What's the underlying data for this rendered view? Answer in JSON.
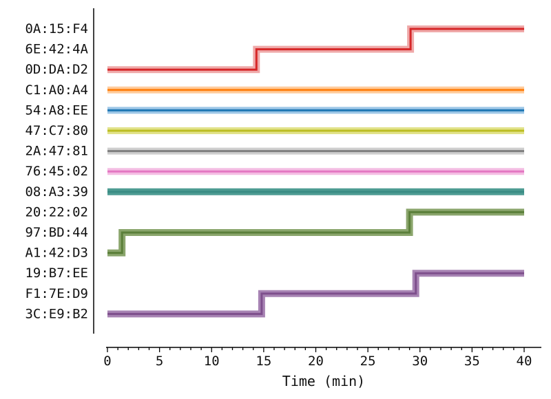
{
  "chart_data": {
    "type": "line",
    "title": "",
    "xlabel": "Time (min)",
    "ylabel": "",
    "xlim": [
      0,
      40
    ],
    "x_major_ticks": [
      0,
      5,
      10,
      15,
      20,
      25,
      30,
      35,
      40
    ],
    "x_minor_step": 1,
    "grid": false,
    "categories": [
      "0A:15:F4",
      "6E:42:4A",
      "0D:DA:D2",
      "C1:A0:A4",
      "54:A8:EE",
      "47:C7:80",
      "2A:47:81",
      "76:45:02",
      "08:A3:39",
      "20:22:02",
      "97:BD:44",
      "A1:42:D3",
      "19:B7:EE",
      "F1:7E:D9",
      "3C:E9:B2"
    ],
    "series": [
      {
        "color": "#d62728",
        "halo": "#efa9a9",
        "points": [
          [
            0,
            "0D:DA:D2"
          ],
          [
            14.3,
            "0D:DA:D2"
          ],
          [
            14.3,
            "6E:42:4A"
          ],
          [
            29.1,
            "6E:42:4A"
          ],
          [
            29.1,
            "0A:15:F4"
          ],
          [
            40,
            "0A:15:F4"
          ]
        ]
      },
      {
        "color": "#ff7f0e",
        "halo": "#ffcc9c",
        "points": [
          [
            0,
            "C1:A0:A4"
          ],
          [
            40,
            "C1:A0:A4"
          ]
        ]
      },
      {
        "color": "#1f77b4",
        "halo": "#9dc6e6",
        "points": [
          [
            0,
            "54:A8:EE"
          ],
          [
            40,
            "54:A8:EE"
          ]
        ]
      },
      {
        "color": "#bcbd22",
        "halo": "#e1e28a",
        "points": [
          [
            0,
            "47:C7:80"
          ],
          [
            40,
            "47:C7:80"
          ]
        ]
      },
      {
        "color": "#7f7f7f",
        "halo": "#cfcfcf",
        "points": [
          [
            0,
            "2A:47:81"
          ],
          [
            40,
            "2A:47:81"
          ]
        ]
      },
      {
        "color": "#e377c2",
        "halo": "#f4bde3",
        "points": [
          [
            0,
            "76:45:02"
          ],
          [
            40,
            "76:45:02"
          ]
        ]
      },
      {
        "color": "#3a8c84",
        "halo": "#4e9c93",
        "points": [
          [
            0,
            "08:A3:39"
          ],
          [
            40,
            "08:A3:39"
          ]
        ]
      },
      {
        "color": "#5b7f3a",
        "halo": "#8aa56c",
        "points": [
          [
            0,
            "A1:42:D3"
          ],
          [
            1.4,
            "A1:42:D3"
          ],
          [
            1.4,
            "97:BD:44"
          ],
          [
            29.0,
            "97:BD:44"
          ],
          [
            29.0,
            "20:22:02"
          ],
          [
            40,
            "20:22:02"
          ]
        ]
      },
      {
        "color": "#7e4f8c",
        "halo": "#a783b3",
        "points": [
          [
            0,
            "3C:E9:B2"
          ],
          [
            14.8,
            "3C:E9:B2"
          ],
          [
            14.8,
            "F1:7E:D9"
          ],
          [
            29.6,
            "F1:7E:D9"
          ],
          [
            29.6,
            "19:B7:EE"
          ],
          [
            40,
            "19:B7:EE"
          ]
        ]
      }
    ]
  }
}
